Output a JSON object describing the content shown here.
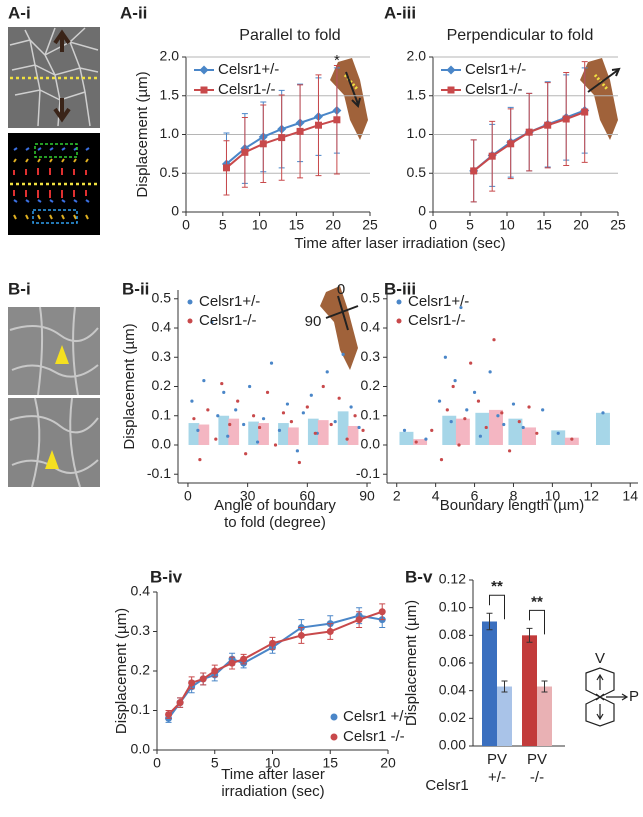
{
  "images": [
    {
      "panel": "A-i"
    },
    {
      "panel": "B-i"
    }
  ],
  "chart_data": [
    {
      "type": "line",
      "panel": "A-ii",
      "title": "Parallel to fold",
      "ylabel": "Displacement (µm)",
      "xlabel": "Time after laser irradiation (sec)",
      "annotation": "*",
      "x": [
        5.5,
        8,
        10.5,
        13,
        15.5,
        18,
        20.5
      ],
      "xlim": [
        0,
        25
      ],
      "xticks": [
        0,
        5,
        10,
        15,
        20,
        25
      ],
      "ylim": [
        0,
        2
      ],
      "yticks": [
        0,
        0.5,
        {
          "value": 1,
          "label": "1.0"
        },
        1.5,
        {
          "value": 2,
          "label": "2.0"
        }
      ],
      "grid": true,
      "legend": "upper left",
      "series": [
        {
          "name": "Celsr1+/-",
          "color": "#4a86c8",
          "marker": "diamond",
          "values": [
            0.62,
            0.82,
            0.97,
            1.07,
            1.15,
            1.23,
            1.31
          ],
          "errors": [
            0.4,
            0.45,
            0.45,
            0.5,
            0.5,
            0.5,
            0.55
          ]
        },
        {
          "name": "Celsr1-/-",
          "color": "#c8494b",
          "marker": "square",
          "values": [
            0.57,
            0.77,
            0.88,
            0.96,
            1.04,
            1.12,
            1.19
          ],
          "errors": [
            0.35,
            0.45,
            0.5,
            0.55,
            0.6,
            0.65,
            0.7
          ]
        }
      ]
    },
    {
      "type": "line",
      "panel": "A-iii",
      "title": "Perpendicular to fold",
      "x": [
        5.5,
        8,
        10.5,
        13,
        15.5,
        18,
        20.5
      ],
      "xlim": [
        0,
        25
      ],
      "xticks": [
        0,
        5,
        10,
        15,
        20,
        25
      ],
      "ylim": [
        0,
        2
      ],
      "yticks": [
        0,
        0.5,
        {
          "value": 1,
          "label": "1.0"
        },
        1.5,
        {
          "value": 2,
          "label": "2.0"
        }
      ],
      "grid": true,
      "legend": "upper left",
      "series": [
        {
          "name": "Celsr1+/-",
          "color": "#4a86c8",
          "marker": "diamond",
          "values": [
            0.53,
            0.73,
            0.9,
            1.03,
            1.13,
            1.22,
            1.31
          ],
          "errors": [
            0.4,
            0.4,
            0.45,
            0.5,
            0.55,
            0.55,
            0.55
          ]
        },
        {
          "name": "Celsr1-/-",
          "color": "#c8494b",
          "marker": "square",
          "values": [
            0.53,
            0.72,
            0.88,
            1.03,
            1.12,
            1.2,
            1.29
          ],
          "errors": [
            0.4,
            0.45,
            0.45,
            0.5,
            0.55,
            0.6,
            0.65
          ]
        }
      ]
    },
    {
      "type": "scatter",
      "panel": "B-ii",
      "ylabel": "Displacement (µm)",
      "xlabel": [
        "Angle of boundary",
        "to fold (degree)"
      ],
      "inset_labels": [
        "0",
        "90"
      ],
      "xlim": [
        -5,
        92
      ],
      "xticks": [
        0,
        30,
        60,
        90
      ],
      "ylim": [
        -0.13,
        0.53
      ],
      "yticks": [
        -0.1,
        {
          "value": 0,
          "label": "0.0"
        },
        0.1,
        0.2,
        0.3,
        0.4,
        0.5
      ],
      "legend": "upper left",
      "series": [
        {
          "name": "Celsr1+/-",
          "color": "#4a86c8",
          "x": [
            2,
            5,
            8,
            12,
            15,
            18,
            20,
            24,
            28,
            31,
            35,
            38,
            42,
            46,
            50,
            55,
            58,
            62,
            65,
            70,
            74,
            78,
            82,
            86
          ],
          "values": [
            0.15,
            0.05,
            0.22,
            0.42,
            0.1,
            0.18,
            0.03,
            0.12,
            0.07,
            0.2,
            0.01,
            0.09,
            0.28,
            0.05,
            0.14,
            -0.02,
            0.11,
            0.17,
            0.04,
            0.25,
            0.08,
            0.31,
            0.13,
            0.06
          ],
          "bar_color": "#a6d6e8",
          "bar_x": [
            3,
            18,
            33,
            48,
            63,
            78
          ],
          "bar_values": [
            0.075,
            0.1,
            0.08,
            0.075,
            0.09,
            0.115
          ]
        },
        {
          "name": "Celsr1-/-",
          "color": "#c8494b",
          "x": [
            3,
            6,
            10,
            14,
            17,
            21,
            25,
            29,
            33,
            36,
            40,
            44,
            48,
            52,
            56,
            60,
            64,
            68,
            72,
            76,
            80,
            84,
            88
          ],
          "values": [
            0.09,
            -0.05,
            0.12,
            0.02,
            0.21,
            0.07,
            0.15,
            -0.03,
            0.1,
            0.06,
            0.18,
            0.0,
            0.11,
            0.08,
            -0.06,
            0.13,
            0.04,
            0.2,
            0.07,
            0.16,
            0.02,
            0.1,
            0.05
          ],
          "bar_color": "#f4b6c2",
          "bar_x": [
            8,
            23,
            38,
            53,
            68,
            83
          ],
          "bar_values": [
            0.07,
            0.09,
            0.075,
            0.06,
            0.085,
            0.065
          ]
        }
      ]
    },
    {
      "type": "scatter",
      "panel": "B-iii",
      "xlabel": [
        "Boundary length (µm)"
      ],
      "xlim": [
        1.5,
        14.4
      ],
      "xticks": [
        2,
        4,
        6,
        8,
        10,
        12,
        14
      ],
      "ylim": [
        -0.13,
        0.53
      ],
      "yticks": [
        -0.1,
        {
          "value": 0,
          "label": "0.0"
        },
        0.1,
        0.2,
        0.3,
        0.4,
        0.5
      ],
      "legend": "upper left",
      "series": [
        {
          "name": "Celsr1+/-",
          "color": "#4a86c8",
          "x": [
            2.4,
            3.5,
            4.2,
            4.5,
            4.8,
            5,
            5.3,
            5.6,
            6,
            6.3,
            6.8,
            7.2,
            7.5,
            8,
            8.5,
            9.5,
            10.3,
            12.6
          ],
          "values": [
            0.05,
            0.02,
            0.15,
            0.3,
            0.08,
            0.22,
            0.47,
            0.12,
            0.18,
            0.03,
            0.25,
            0.1,
            0.07,
            0.14,
            0.06,
            0.12,
            0.04,
            0.11
          ],
          "bar_color": "#a6d6e8",
          "bar_x": [
            2.5,
            4.7,
            6.4,
            8.1,
            10.3,
            12.6
          ],
          "bar_values": [
            0.045,
            0.1,
            0.11,
            0.09,
            0.05,
            0.11
          ]
        },
        {
          "name": "Celsr1-/-",
          "color": "#c8494b",
          "x": [
            3,
            3.8,
            4.3,
            4.6,
            4.9,
            5.2,
            5.5,
            5.8,
            6.2,
            6.6,
            7,
            7.4,
            7.8,
            8.3,
            8.8,
            9.2,
            11
          ],
          "values": [
            0.01,
            0.05,
            -0.05,
            0.12,
            0.2,
            0.0,
            0.09,
            0.28,
            0.15,
            0.06,
            0.36,
            0.11,
            -0.02,
            0.08,
            0.13,
            0.04,
            0.02
          ],
          "bar_color": "#f4b6c2",
          "bar_x": [
            3.2,
            5.4,
            7.1,
            8.8,
            11.0
          ],
          "bar_values": [
            0.02,
            0.09,
            0.12,
            0.06,
            0.025
          ]
        }
      ]
    },
    {
      "type": "line",
      "panel": "B-iv",
      "ylabel": "Displacement (µm)",
      "xlabel": [
        "Time after laser",
        "irradiation (sec)"
      ],
      "x": [
        1,
        2,
        3,
        4,
        5,
        6.5,
        7.5,
        10,
        12.5,
        15,
        17.5,
        19.5
      ],
      "xlim": [
        0,
        20
      ],
      "xticks": [
        0,
        5,
        10,
        15,
        20
      ],
      "ylim": [
        0,
        0.4
      ],
      "yticks": [
        {
          "value": 0,
          "label": "0.0"
        },
        0.1,
        0.2,
        0.3,
        0.4
      ],
      "grid": false,
      "legend": "lower right",
      "series": [
        {
          "name": "Celsr1 +/-",
          "color": "#4a86c8",
          "marker": "circle",
          "values": [
            0.08,
            0.12,
            0.16,
            0.18,
            0.19,
            0.23,
            0.22,
            0.26,
            0.31,
            0.32,
            0.34,
            0.33
          ],
          "errors": [
            0.01,
            0.012,
            0.015,
            0.015,
            0.015,
            0.015,
            0.012,
            0.015,
            0.02,
            0.02,
            0.02,
            0.02
          ]
        },
        {
          "name": "Celsr1 -/-",
          "color": "#c8494b",
          "marker": "circle",
          "values": [
            0.09,
            0.12,
            0.17,
            0.18,
            0.2,
            0.22,
            0.23,
            0.27,
            0.29,
            0.3,
            0.33,
            0.35
          ],
          "errors": [
            0.01,
            0.012,
            0.015,
            0.015,
            0.015,
            0.015,
            0.012,
            0.015,
            0.02,
            0.02,
            0.02,
            0.02
          ]
        }
      ]
    },
    {
      "type": "bar",
      "panel": "B-v",
      "ylabel": "Displacement (µm)",
      "ylim": [
        0,
        0.12
      ],
      "yticks": [
        {
          "value": 0,
          "label": "0.00"
        },
        0.02,
        0.04,
        0.06,
        0.08,
        {
          "value": 0.1,
          "label": "0.10"
        },
        0.12
      ],
      "values": [
        0.09,
        0.043,
        0.08,
        0.043
      ],
      "errors": [
        0.006,
        0.004,
        0.005,
        0.004
      ],
      "colors": [
        "#3a6fbf",
        "#a9c3e8",
        "#c23b3b",
        "#e9b1b4"
      ],
      "groups": [
        {
          "label": "PV",
          "sublabel": "+/-"
        },
        {
          "label": "PV",
          "sublabel": "-/-"
        }
      ],
      "group_title": "Celsr1",
      "significance": [
        "**",
        "**"
      ],
      "diagram_labels": [
        "V",
        "P"
      ]
    }
  ]
}
